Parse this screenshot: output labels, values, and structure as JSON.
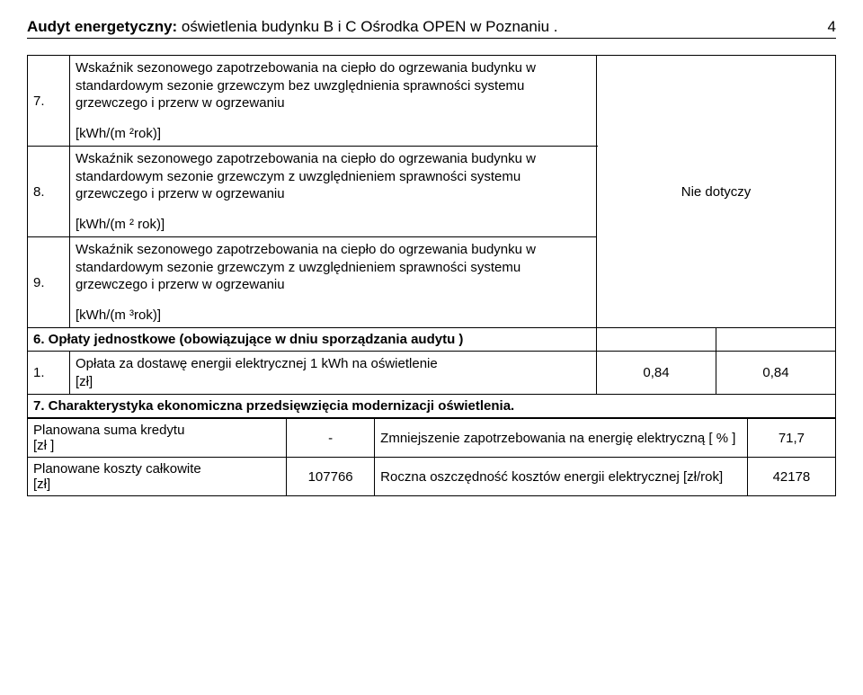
{
  "header": {
    "title_bold": "Audyt energetyczny:",
    "title_rest": " oświetlenia budynku  B i C  Ośrodka OPEN  w Poznaniu .",
    "page_number": "4"
  },
  "rows_789": {
    "r7": {
      "num": "7.",
      "desc_block1": "Wskaźnik sezonowego zapotrzebowania na ciepło do ogrzewania budynku w standardowym sezonie grzewczym  bez uwzględnienia sprawności systemu grzewczego i przerw w ogrzewaniu",
      "unit": "[kWh/(m ²rok)]"
    },
    "r8": {
      "num": "8.",
      "desc_block1": "Wskaźnik sezonowego zapotrzebowania na ciepło do ogrzewania budynku w standardowym sezonie grzewczym z uwzględnieniem  sprawności systemu grzewczego i przerw w ogrzewaniu",
      "unit": "[kWh/(m ² rok)]"
    },
    "r9": {
      "num": "9.",
      "desc_block1": "Wskaźnik sezonowego zapotrzebowania na ciepło do ogrzewania budynku w standardowym sezonie grzewczym z uwzględnieniem  sprawności systemu grzewczego i przerw w ogrzewaniu",
      "unit": "[kWh/(m ³rok)]"
    },
    "side_label": "Nie dotyczy"
  },
  "section6": {
    "heading": "6. Opłaty jednostkowe  (obowiązujące w dniu sporządzania audytu )",
    "row1": {
      "num": "1.",
      "desc": "Opłata  za dostawę  energii elektrycznej   1 kWh  na oświetlenie",
      "unit": "[zł]",
      "val1": "0,84",
      "val2": "0,84"
    }
  },
  "section7": {
    "heading": "7. Charakterystyka ekonomiczna przedsięwzięcia modernizacji oświetlenia.",
    "r1": {
      "left": "Planowana suma kredytu",
      "left_unit": "[zł ]",
      "mid": "-",
      "right": "Zmniejszenie zapotrzebowania na energię elektryczną        [ % ]",
      "val": "71,7"
    },
    "r2": {
      "left": "Planowane koszty całkowite",
      "left_unit": "[zł]",
      "mid": "107766",
      "right": "Roczna oszczędność kosztów energii elektrycznej                            [zł/rok]",
      "val": "42178"
    }
  }
}
